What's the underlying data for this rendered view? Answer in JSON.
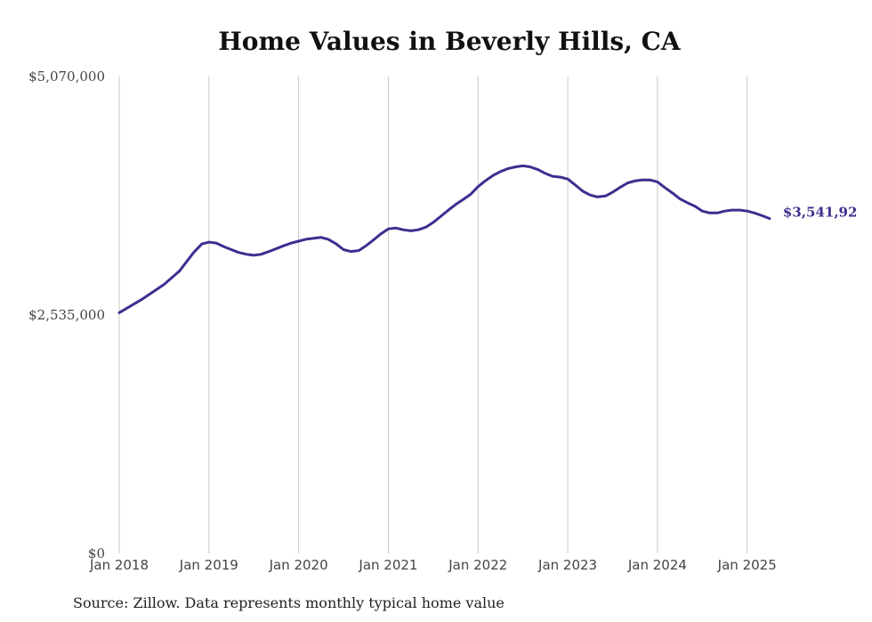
{
  "chart_data": {
    "type": "line",
    "title": "Home Values in Beverly Hills, CA",
    "xlabel": "",
    "ylabel": "",
    "ylim": [
      0,
      5070000
    ],
    "yticks": [
      {
        "value": 0,
        "label": "$0"
      },
      {
        "value": 2535000,
        "label": "$2,535,000"
      },
      {
        "value": 5070000,
        "label": "$5,070,000"
      }
    ],
    "xticks": [
      {
        "value": 2018,
        "label": "Jan 2018"
      },
      {
        "value": 2019,
        "label": "Jan 2019"
      },
      {
        "value": 2020,
        "label": "Jan 2020"
      },
      {
        "value": 2021,
        "label": "Jan 2021"
      },
      {
        "value": 2022,
        "label": "Jan 2022"
      },
      {
        "value": 2023,
        "label": "Jan 2023"
      },
      {
        "value": 2024,
        "label": "Jan 2024"
      },
      {
        "value": 2025,
        "label": "Jan 2025"
      }
    ],
    "xlim": [
      2018,
      2025.35
    ],
    "grid": "vertical",
    "line_color": "#3b2f8f",
    "end_label": "$3,541,92",
    "series": [
      {
        "x": [
          2018.0,
          2018.25,
          2018.5,
          2018.67,
          2018.83,
          2018.92,
          2019.0,
          2019.08,
          2019.17,
          2019.25,
          2019.33,
          2019.42,
          2019.5,
          2019.58,
          2019.67,
          2019.75,
          2019.83,
          2019.92,
          2020.0,
          2020.08,
          2020.17,
          2020.25,
          2020.33,
          2020.42,
          2020.5,
          2020.58,
          2020.67,
          2020.75,
          2020.83,
          2020.92,
          2021.0,
          2021.08,
          2021.17,
          2021.25,
          2021.33,
          2021.42,
          2021.5,
          2021.58,
          2021.67,
          2021.75,
          2021.83,
          2021.92,
          2022.0,
          2022.08,
          2022.17,
          2022.25,
          2022.33,
          2022.42,
          2022.5,
          2022.58,
          2022.67,
          2022.75,
          2022.83,
          2022.92,
          2023.0,
          2023.08,
          2023.17,
          2023.25,
          2023.33,
          2023.42,
          2023.5,
          2023.58,
          2023.67,
          2023.75,
          2023.83,
          2023.92,
          2024.0,
          2024.08,
          2024.17,
          2024.25,
          2024.33,
          2024.42,
          2024.5,
          2024.58,
          2024.67,
          2024.75,
          2024.83,
          2024.92,
          2025.0,
          2025.08,
          2025.17,
          2025.25
        ],
        "y": [
          2560000,
          2700000,
          2860000,
          3000000,
          3200000,
          3290000,
          3310000,
          3300000,
          3260000,
          3230000,
          3200000,
          3180000,
          3170000,
          3180000,
          3210000,
          3240000,
          3270000,
          3300000,
          3320000,
          3340000,
          3350000,
          3360000,
          3340000,
          3290000,
          3230000,
          3210000,
          3220000,
          3270000,
          3330000,
          3400000,
          3450000,
          3460000,
          3440000,
          3430000,
          3440000,
          3470000,
          3520000,
          3580000,
          3650000,
          3710000,
          3760000,
          3820000,
          3900000,
          3960000,
          4020000,
          4060000,
          4090000,
          4110000,
          4120000,
          4110000,
          4080000,
          4040000,
          4010000,
          4000000,
          3980000,
          3920000,
          3850000,
          3810000,
          3790000,
          3800000,
          3840000,
          3890000,
          3940000,
          3960000,
          3970000,
          3970000,
          3950000,
          3890000,
          3830000,
          3770000,
          3730000,
          3690000,
          3640000,
          3620000,
          3620000,
          3640000,
          3650000,
          3650000,
          3640000,
          3620000,
          3590000,
          3560000
        ]
      }
    ]
  },
  "source_note": "Source: Zillow. Data represents monthly typical home value"
}
